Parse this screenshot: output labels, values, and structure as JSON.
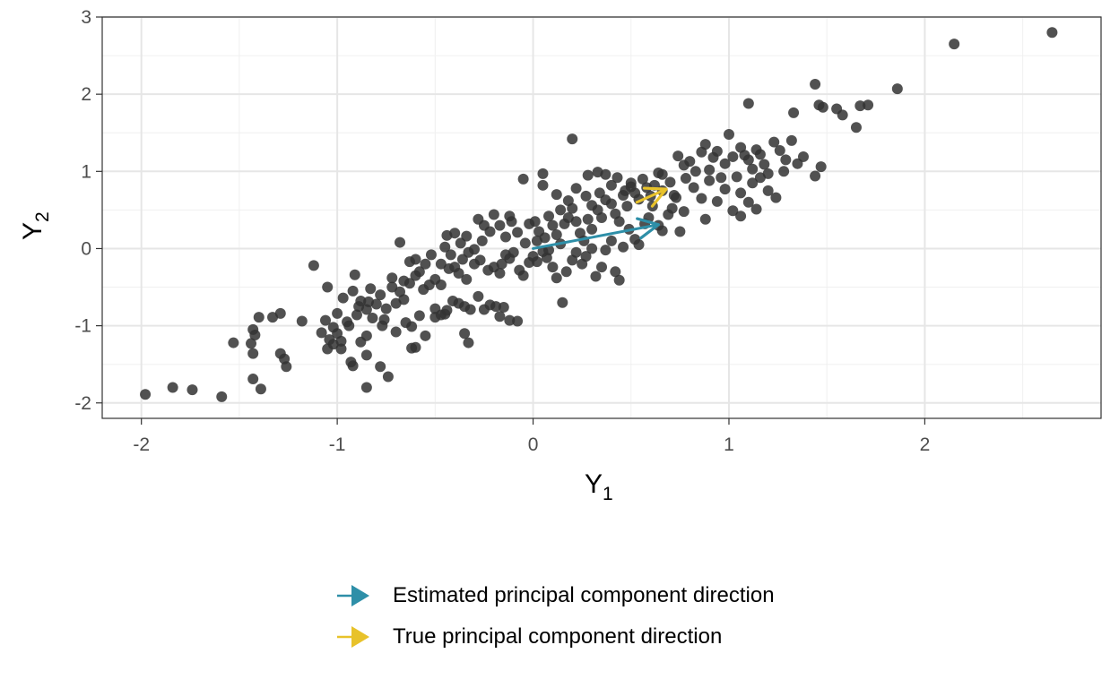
{
  "chart_data": {
    "type": "scatter",
    "title": "",
    "xlabel": {
      "main": "Y",
      "sub": "1"
    },
    "ylabel": {
      "main": "Y",
      "sub": "2"
    },
    "xlim": [
      -2.2,
      2.9
    ],
    "ylim": [
      -2.2,
      3.0
    ],
    "xticks": [
      -2,
      -1,
      0,
      1,
      2
    ],
    "yticks": [
      -2,
      -1,
      0,
      1,
      2,
      3
    ],
    "xtick_labels": [
      "-2",
      "-1",
      "0",
      "1",
      "2"
    ],
    "ytick_labels": [
      "-2",
      "-1",
      "0",
      "1",
      "2",
      "3"
    ],
    "grid": true,
    "legend_position": "bottom",
    "point_color": "#333333",
    "points": [
      [
        -1.98,
        -1.89
      ],
      [
        -1.84,
        -1.8
      ],
      [
        -1.74,
        -1.83
      ],
      [
        -1.59,
        -1.92
      ],
      [
        -1.43,
        -1.69
      ],
      [
        -1.39,
        -1.82
      ],
      [
        -1.53,
        -1.22
      ],
      [
        -1.44,
        -1.23
      ],
      [
        -1.43,
        -1.05
      ],
      [
        -1.42,
        -1.12
      ],
      [
        -1.4,
        -0.89
      ],
      [
        -1.33,
        -0.89
      ],
      [
        -1.29,
        -0.84
      ],
      [
        -1.27,
        -1.43
      ],
      [
        -1.26,
        -1.53
      ],
      [
        -1.43,
        -1.36
      ],
      [
        -1.29,
        -1.36
      ],
      [
        -1.12,
        -0.22
      ],
      [
        -1.18,
        -0.94
      ],
      [
        -1.08,
        -1.09
      ],
      [
        -1.06,
        -0.93
      ],
      [
        -1.04,
        -1.18
      ],
      [
        -1.02,
        -1.02
      ],
      [
        -0.98,
        -1.3
      ],
      [
        -1.05,
        -1.3
      ],
      [
        -1.05,
        -0.5
      ],
      [
        -0.97,
        -0.64
      ],
      [
        -1.0,
        -0.84
      ],
      [
        -1.02,
        -1.24
      ],
      [
        -0.94,
        -1.0
      ],
      [
        -0.91,
        -0.34
      ],
      [
        -0.92,
        -0.55
      ],
      [
        -0.9,
        -0.86
      ],
      [
        -0.89,
        -0.75
      ],
      [
        -0.85,
        -0.79
      ],
      [
        -0.84,
        -0.69
      ],
      [
        -0.8,
        -0.72
      ],
      [
        -0.75,
        -0.78
      ],
      [
        -0.7,
        -0.71
      ],
      [
        -0.93,
        -1.47
      ],
      [
        -0.92,
        -1.52
      ],
      [
        -0.88,
        -1.21
      ],
      [
        -0.85,
        -1.13
      ],
      [
        -0.85,
        -1.8
      ],
      [
        -0.78,
        -1.53
      ],
      [
        -0.74,
        -1.66
      ],
      [
        -0.83,
        -0.52
      ],
      [
        -0.72,
        -0.38
      ],
      [
        -0.68,
        -0.56
      ],
      [
        -0.66,
        -0.66
      ],
      [
        -0.63,
        -0.45
      ],
      [
        -0.58,
        -0.3
      ],
      [
        -0.56,
        -0.53
      ],
      [
        -0.53,
        -0.47
      ],
      [
        -0.5,
        -0.4
      ],
      [
        -0.47,
        -0.47
      ],
      [
        -0.68,
        0.08
      ],
      [
        -0.63,
        -0.17
      ],
      [
        -0.6,
        -0.14
      ],
      [
        -0.52,
        -0.08
      ],
      [
        -0.47,
        -0.2
      ],
      [
        -0.43,
        -0.26
      ],
      [
        -0.4,
        -0.24
      ],
      [
        -0.38,
        -0.32
      ],
      [
        -0.34,
        -0.4
      ],
      [
        -0.45,
        0.02
      ],
      [
        -0.42,
        -0.08
      ],
      [
        -0.36,
        -0.14
      ],
      [
        -0.33,
        -0.05
      ],
      [
        -0.3,
        -0.2
      ],
      [
        -0.27,
        -0.15
      ],
      [
        -0.23,
        -0.28
      ],
      [
        -0.2,
        -0.24
      ],
      [
        -0.17,
        -0.32
      ],
      [
        -0.16,
        -0.2
      ],
      [
        -0.14,
        -0.08
      ],
      [
        -0.12,
        -0.13
      ],
      [
        -0.1,
        -0.05
      ],
      [
        -0.07,
        -0.28
      ],
      [
        -0.05,
        -0.35
      ],
      [
        -0.02,
        -0.18
      ],
      [
        -0.5,
        -0.78
      ],
      [
        -0.45,
        -0.85
      ],
      [
        -0.38,
        -0.71
      ],
      [
        -0.35,
        -0.75
      ],
      [
        -0.32,
        -0.79
      ],
      [
        -0.28,
        -0.62
      ],
      [
        -0.25,
        -0.79
      ],
      [
        -0.22,
        -0.73
      ],
      [
        -0.19,
        -0.75
      ],
      [
        -0.17,
        -0.88
      ],
      [
        -0.15,
        -0.76
      ],
      [
        -0.12,
        -0.93
      ],
      [
        -0.08,
        -0.94
      ],
      [
        -0.35,
        -1.1
      ],
      [
        -0.33,
        -1.22
      ],
      [
        -0.62,
        -1.29
      ],
      [
        -0.6,
        -1.28
      ],
      [
        -0.85,
        -1.38
      ],
      [
        -0.77,
        -1.0
      ],
      [
        -0.7,
        -1.08
      ],
      [
        -0.62,
        -1.01
      ],
      [
        -0.58,
        -0.87
      ],
      [
        -0.55,
        -1.13
      ],
      [
        -0.5,
        -0.89
      ],
      [
        -0.47,
        -0.86
      ],
      [
        -0.44,
        -0.8
      ],
      [
        -0.41,
        -0.68
      ],
      [
        -0.44,
        0.17
      ],
      [
        -0.4,
        0.2
      ],
      [
        -0.37,
        0.07
      ],
      [
        -0.34,
        0.16
      ],
      [
        -0.3,
        -0.01
      ],
      [
        -0.26,
        0.1
      ],
      [
        -0.22,
        0.22
      ],
      [
        -0.2,
        0.44
      ],
      [
        -0.17,
        0.3
      ],
      [
        -0.14,
        0.15
      ],
      [
        -0.11,
        0.35
      ],
      [
        -0.08,
        0.21
      ],
      [
        -0.04,
        0.07
      ],
      [
        -0.02,
        0.32
      ],
      [
        0.01,
        0.35
      ],
      [
        0.03,
        0.22
      ],
      [
        0.06,
        0.14
      ],
      [
        0.08,
        0.42
      ],
      [
        0.1,
        0.3
      ],
      [
        0.12,
        0.18
      ],
      [
        0.14,
        0.06
      ],
      [
        0.16,
        0.32
      ],
      [
        0.18,
        0.4
      ],
      [
        0.2,
        0.52
      ],
      [
        0.22,
        0.35
      ],
      [
        0.24,
        0.2
      ],
      [
        0.26,
        0.1
      ],
      [
        0.28,
        0.38
      ],
      [
        0.3,
        0.25
      ],
      [
        0.33,
        0.5
      ],
      [
        0.35,
        0.4
      ],
      [
        0.37,
        0.63
      ],
      [
        0.4,
        0.58
      ],
      [
        0.42,
        0.45
      ],
      [
        0.44,
        0.35
      ],
      [
        0.46,
        0.69
      ],
      [
        0.48,
        0.55
      ],
      [
        0.5,
        0.8
      ],
      [
        0.52,
        0.72
      ],
      [
        0.54,
        0.64
      ],
      [
        0.56,
        0.9
      ],
      [
        0.58,
        0.79
      ],
      [
        0.6,
        0.68
      ],
      [
        0.62,
        0.82
      ],
      [
        0.64,
        0.98
      ],
      [
        0.66,
        0.75
      ],
      [
        0.0,
        -0.1
      ],
      [
        0.02,
        -0.17
      ],
      [
        0.05,
        -0.04
      ],
      [
        0.07,
        -0.12
      ],
      [
        0.1,
        -0.24
      ],
      [
        0.12,
        -0.38
      ],
      [
        0.15,
        -0.7
      ],
      [
        0.17,
        -0.3
      ],
      [
        0.2,
        -0.15
      ],
      [
        0.22,
        -0.05
      ],
      [
        0.25,
        -0.2
      ],
      [
        0.27,
        -0.1
      ],
      [
        0.3,
        0.0
      ],
      [
        0.32,
        -0.36
      ],
      [
        0.35,
        -0.24
      ],
      [
        0.37,
        -0.02
      ],
      [
        0.4,
        0.1
      ],
      [
        0.42,
        -0.3
      ],
      [
        0.44,
        -0.41
      ],
      [
        0.46,
        0.02
      ],
      [
        0.49,
        0.25
      ],
      [
        0.52,
        0.12
      ],
      [
        0.54,
        0.05
      ],
      [
        0.57,
        0.32
      ],
      [
        0.59,
        0.4
      ],
      [
        0.61,
        0.55
      ],
      [
        0.64,
        0.3
      ],
      [
        0.66,
        0.23
      ],
      [
        0.69,
        0.44
      ],
      [
        0.71,
        0.52
      ],
      [
        0.73,
        0.66
      ],
      [
        0.75,
        0.22
      ],
      [
        0.77,
        0.48
      ],
      [
        0.2,
        1.42
      ],
      [
        0.05,
        0.97
      ],
      [
        0.05,
        0.82
      ],
      [
        0.28,
        0.95
      ],
      [
        0.33,
        0.99
      ],
      [
        0.37,
        0.96
      ],
      [
        0.4,
        0.82
      ],
      [
        0.43,
        0.92
      ],
      [
        0.47,
        0.75
      ],
      [
        0.5,
        0.85
      ],
      [
        0.74,
        1.2
      ],
      [
        0.77,
        1.08
      ],
      [
        0.8,
        1.13
      ],
      [
        0.83,
        1.0
      ],
      [
        0.86,
        1.25
      ],
      [
        0.88,
        1.35
      ],
      [
        0.9,
        1.02
      ],
      [
        0.92,
        1.18
      ],
      [
        0.94,
        1.26
      ],
      [
        0.96,
        0.92
      ],
      [
        0.98,
        1.1
      ],
      [
        1.0,
        1.48
      ],
      [
        1.02,
        1.19
      ],
      [
        1.04,
        0.93
      ],
      [
        1.06,
        1.31
      ],
      [
        1.08,
        1.21
      ],
      [
        1.1,
        1.15
      ],
      [
        1.12,
        1.03
      ],
      [
        1.14,
        1.28
      ],
      [
        1.16,
        1.22
      ],
      [
        1.18,
        1.09
      ],
      [
        1.2,
        0.97
      ],
      [
        1.23,
        1.38
      ],
      [
        1.26,
        1.27
      ],
      [
        1.29,
        1.15
      ],
      [
        1.32,
        1.4
      ],
      [
        1.35,
        1.1
      ],
      [
        1.38,
        1.19
      ],
      [
        0.66,
        0.96
      ],
      [
        0.7,
        0.86
      ],
      [
        0.72,
        0.69
      ],
      [
        0.78,
        0.91
      ],
      [
        0.82,
        0.79
      ],
      [
        0.86,
        0.65
      ],
      [
        0.9,
        0.88
      ],
      [
        0.94,
        0.61
      ],
      [
        0.98,
        0.77
      ],
      [
        1.02,
        0.49
      ],
      [
        1.06,
        0.72
      ],
      [
        1.1,
        0.6
      ],
      [
        1.14,
        0.51
      ],
      [
        0.88,
        0.38
      ],
      [
        1.06,
        0.42
      ],
      [
        1.12,
        0.85
      ],
      [
        1.16,
        0.92
      ],
      [
        1.2,
        0.75
      ],
      [
        1.24,
        0.66
      ],
      [
        1.28,
        1.0
      ],
      [
        1.44,
        0.94
      ],
      [
        1.47,
        1.06
      ],
      [
        1.1,
        1.88
      ],
      [
        1.33,
        1.76
      ],
      [
        1.44,
        2.13
      ],
      [
        1.46,
        1.86
      ],
      [
        1.48,
        1.83
      ],
      [
        1.55,
        1.81
      ],
      [
        1.58,
        1.73
      ],
      [
        1.65,
        1.57
      ],
      [
        1.67,
        1.85
      ],
      [
        1.71,
        1.86
      ],
      [
        1.86,
        2.07
      ],
      [
        2.15,
        2.65
      ],
      [
        2.65,
        2.8
      ],
      [
        -0.05,
        0.9
      ],
      [
        0.12,
        0.7
      ],
      [
        0.18,
        0.62
      ],
      [
        0.22,
        0.78
      ],
      [
        0.27,
        0.68
      ],
      [
        0.3,
        0.56
      ],
      [
        0.34,
        0.72
      ],
      [
        -0.25,
        0.3
      ],
      [
        -0.28,
        0.38
      ],
      [
        -0.12,
        0.42
      ],
      [
        0.02,
        0.1
      ],
      [
        0.08,
        -0.02
      ],
      [
        0.14,
        0.5
      ],
      [
        -0.55,
        -0.2
      ],
      [
        -0.6,
        -0.35
      ],
      [
        -0.66,
        -0.42
      ],
      [
        -0.72,
        -0.5
      ],
      [
        -0.78,
        -0.6
      ],
      [
        -0.88,
        -0.68
      ],
      [
        -0.95,
        -0.95
      ],
      [
        -1.0,
        -1.1
      ],
      [
        -0.98,
        -1.2
      ],
      [
        -0.82,
        -0.9
      ],
      [
        -0.76,
        -0.92
      ],
      [
        -0.65,
        -0.96
      ]
    ],
    "series": [
      {
        "name": "Estimated principal component direction",
        "color": "#2e8fa8",
        "x0": 0,
        "y0": 0,
        "x1": 0.64,
        "y1": 0.31
      },
      {
        "name": "True principal component direction",
        "color": "#e8c22a",
        "x0": 0.53,
        "y0": 0.6,
        "x1": 0.68,
        "y1": 0.77
      }
    ]
  }
}
